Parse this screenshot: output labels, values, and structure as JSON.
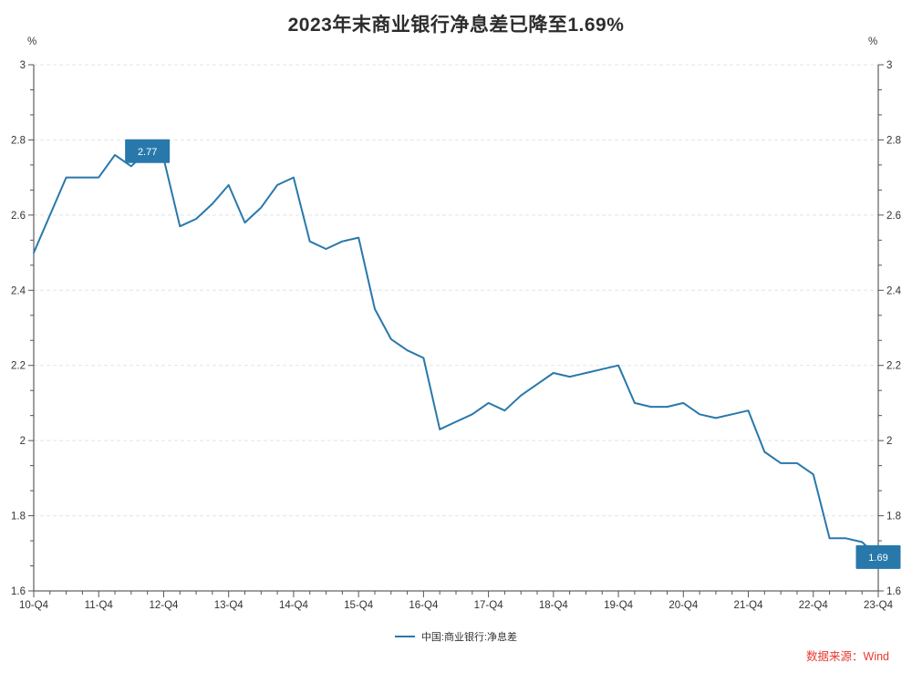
{
  "title": "2023年末商业银行净息差已降至1.69%",
  "y_axis": {
    "unit": "%",
    "min": 1.6,
    "max": 3.0,
    "step": 0.2,
    "tick_labels": [
      "3",
      "2.8",
      "2.6",
      "2.4",
      "2.2",
      "2",
      "1.8",
      "1.6"
    ]
  },
  "x_axis": {
    "major_labels": [
      "10-Q4",
      "11-Q4",
      "12-Q4",
      "13-Q4",
      "14-Q4",
      "15-Q4",
      "16-Q4",
      "17-Q4",
      "18-Q4",
      "19-Q4",
      "20-Q4",
      "21-Q4",
      "22-Q4",
      "23-Q4"
    ]
  },
  "legend": {
    "label": "中国:商业银行:净息差"
  },
  "source": {
    "label": "数据来源：Wind"
  },
  "colors": {
    "line": "#2878ab",
    "annotation_box": "#2878ab",
    "annotation_text": "#ffffff",
    "grid": "#e4e4e4",
    "axis": "#3d3d3d",
    "tick": "#555555",
    "title": "#2d2d2d",
    "source": "#e8392f"
  },
  "annotations": [
    {
      "x": "12-Q3",
      "value": 2.77,
      "label": "2.77"
    },
    {
      "x": "23-Q4",
      "value": 1.69,
      "label": "1.69"
    }
  ],
  "chart_data": {
    "type": "line",
    "title": "2023年末商业银行净息差已降至1.69%",
    "xlabel": "",
    "ylabel": "%",
    "ylim": [
      1.6,
      3.0
    ],
    "grid": "horizontal-dashed",
    "legend_position": "bottom-center",
    "x": [
      "10-Q4",
      "11-Q1",
      "11-Q2",
      "11-Q3",
      "11-Q4",
      "12-Q1",
      "12-Q2",
      "12-Q3",
      "12-Q4",
      "13-Q1",
      "13-Q2",
      "13-Q3",
      "13-Q4",
      "14-Q1",
      "14-Q2",
      "14-Q3",
      "14-Q4",
      "15-Q1",
      "15-Q2",
      "15-Q3",
      "15-Q4",
      "16-Q1",
      "16-Q2",
      "16-Q3",
      "16-Q4",
      "17-Q1",
      "17-Q2",
      "17-Q3",
      "17-Q4",
      "18-Q1",
      "18-Q2",
      "18-Q3",
      "18-Q4",
      "19-Q1",
      "19-Q2",
      "19-Q3",
      "19-Q4",
      "20-Q1",
      "20-Q2",
      "20-Q3",
      "20-Q4",
      "21-Q1",
      "21-Q2",
      "21-Q3",
      "21-Q4",
      "22-Q1",
      "22-Q2",
      "22-Q3",
      "22-Q4",
      "23-Q1",
      "23-Q2",
      "23-Q3",
      "23-Q4"
    ],
    "series": [
      {
        "name": "中国:商业银行:净息差",
        "values": [
          2.5,
          2.6,
          2.7,
          2.7,
          2.7,
          2.76,
          2.73,
          2.77,
          2.75,
          2.57,
          2.59,
          2.63,
          2.68,
          2.58,
          2.62,
          2.68,
          2.7,
          2.53,
          2.51,
          2.53,
          2.54,
          2.35,
          2.27,
          2.24,
          2.22,
          2.03,
          2.05,
          2.07,
          2.1,
          2.08,
          2.12,
          2.15,
          2.18,
          2.17,
          2.18,
          2.19,
          2.2,
          2.1,
          2.09,
          2.09,
          2.1,
          2.07,
          2.06,
          2.07,
          2.08,
          1.97,
          1.94,
          1.94,
          1.91,
          1.74,
          1.74,
          1.73,
          1.69
        ]
      }
    ]
  }
}
